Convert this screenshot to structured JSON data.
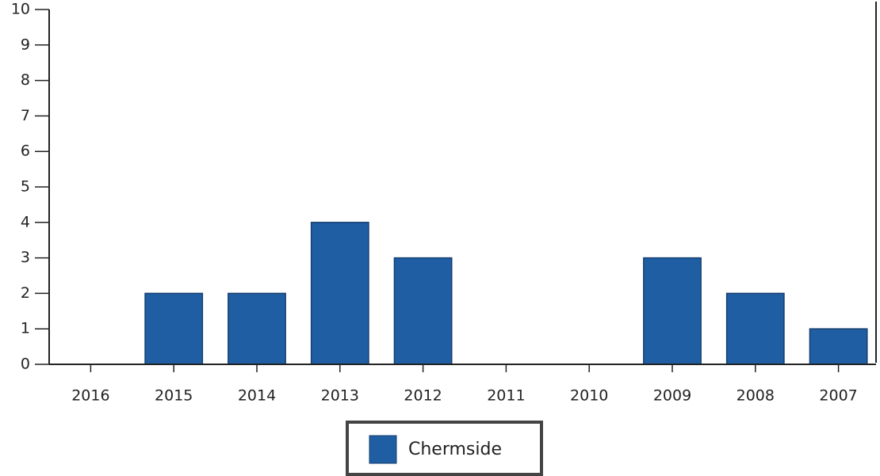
{
  "chart_data": {
    "type": "bar",
    "categories": [
      "2016",
      "2015",
      "2014",
      "2013",
      "2012",
      "2011",
      "2010",
      "2009",
      "2008",
      "2007"
    ],
    "series": [
      {
        "name": "Chermside",
        "color": "#1f5ea3",
        "values": [
          0,
          2,
          2,
          4,
          3,
          0,
          0,
          3,
          2,
          1
        ]
      }
    ],
    "ylim": [
      0,
      10
    ],
    "yticks": [
      0,
      1,
      2,
      3,
      4,
      5,
      6,
      7,
      8,
      9,
      10
    ],
    "grid": false,
    "legend": "bottom"
  }
}
